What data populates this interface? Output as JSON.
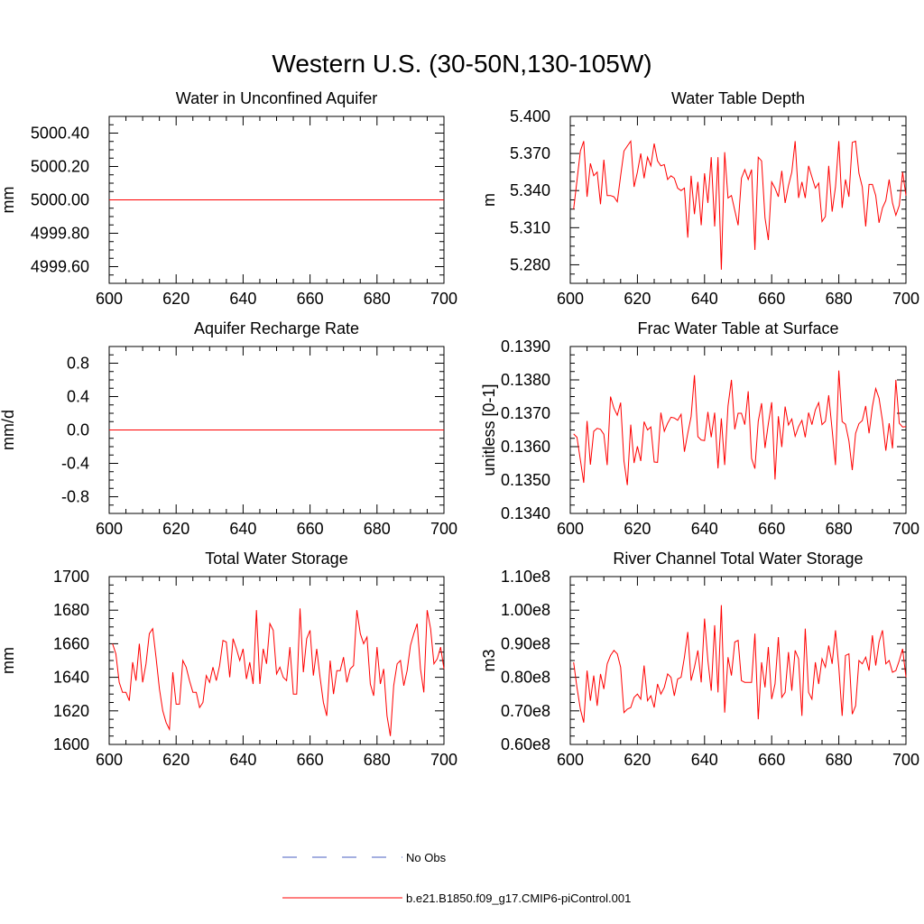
{
  "figure": {
    "title": "Western U.S. (30-50N,130-105W)",
    "legend": {
      "obs_label": "No Obs",
      "model_label": "b.e21.B1850.f09_g17.CMIP6-piControl.001",
      "obs_color": "#4a5fc1",
      "model_color": "#ff0000"
    }
  },
  "chart_data": [
    {
      "type": "line",
      "title": "Water in Unconfined Aquifer",
      "xlabel": "",
      "ylabel": "mm",
      "xlim": [
        600,
        700
      ],
      "ylim": [
        4999.5,
        5000.5
      ],
      "xticks": [
        600,
        620,
        640,
        660,
        680,
        700
      ],
      "yticks": [
        4999.6,
        4999.8,
        5000.0,
        5000.2,
        5000.4
      ],
      "ytick_labels": [
        "4999.60",
        "4999.80",
        "5000.00",
        "5000.20",
        "5000.40"
      ],
      "x": [
        600,
        700
      ],
      "series": [
        {
          "values": [
            5000.0,
            5000.0
          ]
        }
      ]
    },
    {
      "type": "line",
      "title": "Water Table Depth",
      "xlabel": "",
      "ylabel": "m",
      "xlim": [
        600,
        700
      ],
      "ylim": [
        5.265,
        5.4
      ],
      "xticks": [
        600,
        620,
        640,
        660,
        680,
        700
      ],
      "yticks": [
        5.28,
        5.31,
        5.34,
        5.37,
        5.4
      ],
      "ytick_labels": [
        "5.280",
        "5.310",
        "5.340",
        "5.370",
        "5.400"
      ],
      "x": [
        601,
        602,
        603,
        604,
        605,
        606,
        607,
        608,
        609,
        610,
        611,
        612,
        613,
        614,
        615,
        616,
        617,
        618,
        619,
        620,
        621,
        622,
        623,
        624,
        625,
        626,
        627,
        628,
        629,
        630,
        631,
        632,
        633,
        634,
        635,
        636,
        637,
        638,
        639,
        640,
        641,
        642,
        643,
        644,
        645,
        646,
        647,
        648,
        649,
        650,
        651,
        652,
        653,
        654,
        655,
        656,
        657,
        658,
        659,
        660,
        661,
        662,
        663,
        664,
        665,
        666,
        667,
        668,
        669,
        670,
        671,
        672,
        673,
        674,
        675,
        676,
        677,
        678,
        679,
        680,
        681,
        682,
        683,
        684,
        685,
        686,
        687,
        688,
        689,
        690,
        691,
        692,
        693,
        694,
        695,
        696,
        697,
        698,
        699,
        700
      ],
      "series": [
        {
          "values": [
            5.325,
            5.348,
            5.372,
            5.38,
            5.335,
            5.362,
            5.352,
            5.355,
            5.329,
            5.365,
            5.336,
            5.336,
            5.335,
            5.331,
            5.352,
            5.372,
            5.376,
            5.38,
            5.343,
            5.355,
            5.37,
            5.35,
            5.367,
            5.36,
            5.378,
            5.364,
            5.36,
            5.361,
            5.349,
            5.352,
            5.35,
            5.342,
            5.34,
            5.342,
            5.302,
            5.352,
            5.321,
            5.347,
            5.312,
            5.354,
            5.33,
            5.367,
            5.311,
            5.367,
            5.276,
            5.371,
            5.334,
            5.336,
            5.324,
            5.312,
            5.35,
            5.357,
            5.349,
            5.357,
            5.292,
            5.367,
            5.364,
            5.318,
            5.3,
            5.347,
            5.342,
            5.335,
            5.356,
            5.33,
            5.344,
            5.355,
            5.38,
            5.334,
            5.347,
            5.334,
            5.36,
            5.351,
            5.342,
            5.346,
            5.315,
            5.319,
            5.36,
            5.323,
            5.343,
            5.38,
            5.326,
            5.349,
            5.335,
            5.379,
            5.38,
            5.354,
            5.343,
            5.311,
            5.345,
            5.345,
            5.336,
            5.314,
            5.326,
            5.332,
            5.349,
            5.33,
            5.32,
            5.328,
            5.355,
            5.336
          ]
        }
      ]
    },
    {
      "type": "line",
      "title": "Aquifer Recharge Rate",
      "xlabel": "",
      "ylabel": "mm/d",
      "xlim": [
        600,
        700
      ],
      "ylim": [
        -1.0,
        1.0
      ],
      "xticks": [
        600,
        620,
        640,
        660,
        680,
        700
      ],
      "yticks": [
        -0.8,
        -0.4,
        0.0,
        0.4,
        0.8
      ],
      "ytick_labels": [
        "-0.8",
        "-0.4",
        "0.0",
        "0.4",
        "0.8"
      ],
      "x": [
        600,
        700
      ],
      "series": [
        {
          "values": [
            0.0,
            0.0
          ]
        }
      ]
    },
    {
      "type": "line",
      "title": "Frac Water Table at Surface",
      "xlabel": "",
      "ylabel": "unitless [0-1]",
      "xlim": [
        600,
        700
      ],
      "ylim": [
        0.134,
        0.139
      ],
      "xticks": [
        600,
        620,
        640,
        660,
        680,
        700
      ],
      "yticks": [
        0.134,
        0.135,
        0.136,
        0.137,
        0.138,
        0.139
      ],
      "ytick_labels": [
        "0.1340",
        "0.1350",
        "0.1360",
        "0.1370",
        "0.1380",
        "0.1390"
      ],
      "x": [
        601,
        602,
        603,
        604,
        605,
        606,
        607,
        608,
        609,
        610,
        611,
        612,
        613,
        614,
        615,
        616,
        617,
        618,
        619,
        620,
        621,
        622,
        623,
        624,
        625,
        626,
        627,
        628,
        629,
        630,
        631,
        632,
        633,
        634,
        635,
        636,
        637,
        638,
        639,
        640,
        641,
        642,
        643,
        644,
        645,
        646,
        647,
        648,
        649,
        650,
        651,
        652,
        653,
        654,
        655,
        656,
        657,
        658,
        659,
        660,
        661,
        662,
        663,
        664,
        665,
        666,
        667,
        668,
        669,
        670,
        671,
        672,
        673,
        674,
        675,
        676,
        677,
        678,
        679,
        680,
        681,
        682,
        683,
        684,
        685,
        686,
        687,
        688,
        689,
        690,
        691,
        692,
        693,
        694,
        695,
        696,
        697,
        698,
        699,
        700
      ],
      "series": [
        {
          "values": [
            0.13638,
            0.13628,
            0.1356,
            0.13492,
            0.13677,
            0.13546,
            0.13646,
            0.13655,
            0.13652,
            0.13637,
            0.13545,
            0.1375,
            0.13715,
            0.13694,
            0.13732,
            0.13557,
            0.13485,
            0.13666,
            0.13551,
            0.13601,
            0.13557,
            0.13675,
            0.1365,
            0.13659,
            0.13554,
            0.13553,
            0.13702,
            0.13646,
            0.1367,
            0.13688,
            0.13686,
            0.13679,
            0.13697,
            0.13585,
            0.1364,
            0.1369,
            0.13814,
            0.1363,
            0.1362,
            0.13618,
            0.13704,
            0.13628,
            0.13702,
            0.13535,
            0.13685,
            0.13545,
            0.13722,
            0.138,
            0.13652,
            0.137,
            0.137,
            0.13666,
            0.13766,
            0.13565,
            0.13534,
            0.13676,
            0.1373,
            0.13596,
            0.13669,
            0.13733,
            0.13502,
            0.13691,
            0.13599,
            0.1372,
            0.13665,
            0.13683,
            0.13631,
            0.1366,
            0.13679,
            0.13628,
            0.13702,
            0.13666,
            0.1371,
            0.13732,
            0.13666,
            0.13676,
            0.13754,
            0.1365,
            0.13545,
            0.13828,
            0.13675,
            0.13667,
            0.13617,
            0.1353,
            0.1364,
            0.13669,
            0.13678,
            0.13722,
            0.1364,
            0.1372,
            0.13774,
            0.13745,
            0.13677,
            0.13588,
            0.1367,
            0.13595,
            0.138,
            0.1367,
            0.13659,
            0.1366
          ]
        }
      ]
    },
    {
      "type": "line",
      "title": "Total Water Storage",
      "xlabel": "",
      "ylabel": "mm",
      "xlim": [
        600,
        700
      ],
      "ylim": [
        1600,
        1700
      ],
      "xticks": [
        600,
        620,
        640,
        660,
        680,
        700
      ],
      "yticks": [
        1600,
        1620,
        1640,
        1660,
        1680,
        1700
      ],
      "ytick_labels": [
        "1600",
        "1620",
        "1640",
        "1660",
        "1680",
        "1700"
      ],
      "x": [
        601,
        602,
        603,
        604,
        605,
        606,
        607,
        608,
        609,
        610,
        611,
        612,
        613,
        614,
        615,
        616,
        617,
        618,
        619,
        620,
        621,
        622,
        623,
        624,
        625,
        626,
        627,
        628,
        629,
        630,
        631,
        632,
        633,
        634,
        635,
        636,
        637,
        638,
        639,
        640,
        641,
        642,
        643,
        644,
        645,
        646,
        647,
        648,
        649,
        650,
        651,
        652,
        653,
        654,
        655,
        656,
        657,
        658,
        659,
        660,
        661,
        662,
        663,
        664,
        665,
        666,
        667,
        668,
        669,
        670,
        671,
        672,
        673,
        674,
        675,
        676,
        677,
        678,
        679,
        680,
        681,
        682,
        683,
        684,
        685,
        686,
        687,
        688,
        689,
        690,
        691,
        692,
        693,
        694,
        695,
        696,
        697,
        698,
        699,
        700
      ],
      "series": [
        {
          "values": [
            1660,
            1654,
            1637,
            1631,
            1631,
            1626,
            1649,
            1638,
            1660,
            1637,
            1648,
            1666,
            1669,
            1652,
            1633,
            1620,
            1613,
            1609,
            1643,
            1624,
            1624,
            1650,
            1646,
            1638,
            1631,
            1631,
            1622,
            1625,
            1641,
            1637,
            1646,
            1638,
            1647,
            1662,
            1661,
            1640,
            1663,
            1657,
            1650,
            1657,
            1639,
            1649,
            1636,
            1680,
            1636,
            1657,
            1648,
            1672,
            1668,
            1642,
            1646,
            1640,
            1638,
            1658,
            1630,
            1630,
            1681,
            1643,
            1663,
            1668,
            1641,
            1657,
            1640,
            1625,
            1617,
            1650,
            1630,
            1644,
            1644,
            1652,
            1637,
            1645,
            1647,
            1680,
            1666,
            1660,
            1664,
            1636,
            1629,
            1658,
            1636,
            1645,
            1617,
            1605,
            1635,
            1648,
            1650,
            1635,
            1644,
            1659,
            1666,
            1672,
            1645,
            1631,
            1680,
            1669,
            1648,
            1651,
            1658,
            1645
          ]
        }
      ]
    },
    {
      "type": "line",
      "title": "River Channel Total Water Storage",
      "xlabel": "",
      "ylabel": "m3",
      "xlim": [
        600,
        700
      ],
      "ylim": [
        60000000,
        110000000
      ],
      "xticks": [
        600,
        620,
        640,
        660,
        680,
        700
      ],
      "yticks": [
        60000000,
        70000000,
        80000000,
        90000000,
        100000000,
        110000000
      ],
      "ytick_labels": [
        "0.60e8",
        "0.70e8",
        "0.80e8",
        "0.90e8",
        "1.00e8",
        "1.10e8"
      ],
      "x": [
        601,
        602,
        603,
        604,
        605,
        606,
        607,
        608,
        609,
        610,
        611,
        612,
        613,
        614,
        615,
        616,
        617,
        618,
        619,
        620,
        621,
        622,
        623,
        624,
        625,
        626,
        627,
        628,
        629,
        630,
        631,
        632,
        633,
        634,
        635,
        636,
        637,
        638,
        639,
        640,
        641,
        642,
        643,
        644,
        645,
        646,
        647,
        648,
        649,
        650,
        651,
        652,
        653,
        654,
        655,
        656,
        657,
        658,
        659,
        660,
        661,
        662,
        663,
        664,
        665,
        666,
        667,
        668,
        669,
        670,
        671,
        672,
        673,
        674,
        675,
        676,
        677,
        678,
        679,
        680,
        681,
        682,
        683,
        684,
        685,
        686,
        687,
        688,
        689,
        690,
        691,
        692,
        693,
        694,
        695,
        696,
        697,
        698,
        699,
        700
      ],
      "series": [
        {
          "values": [
            84500000,
            77000000,
            70500000,
            66500000,
            82000000,
            73000000,
            80500000,
            71500000,
            81000000,
            76500000,
            84000000,
            86500000,
            88000000,
            87000000,
            83000000,
            69500000,
            70500000,
            71000000,
            74000000,
            75000000,
            73500000,
            83500000,
            73000000,
            74500000,
            71000000,
            78000000,
            75000000,
            77000000,
            81000000,
            80000000,
            74500000,
            79500000,
            80000000,
            86000000,
            93500000,
            79000000,
            83000000,
            88000000,
            78500000,
            97500000,
            85000000,
            76000000,
            95500000,
            75500000,
            101500000,
            69500000,
            86000000,
            80500000,
            90500000,
            91000000,
            79000000,
            78500000,
            78500000,
            78500000,
            93000000,
            67500000,
            84500000,
            77000000,
            89000000,
            73500000,
            78000000,
            92000000,
            74000000,
            75500000,
            87500000,
            76000000,
            88000000,
            85500000,
            68500000,
            94500000,
            75500000,
            73500000,
            84500000,
            78000000,
            85500000,
            83000000,
            89500000,
            84000000,
            94000000,
            83000000,
            68500000,
            86500000,
            87000000,
            69000000,
            71500000,
            85000000,
            84000000,
            86000000,
            82000000,
            92500000,
            83500000,
            90500000,
            94000000,
            84000000,
            85000000,
            81500000,
            82000000,
            85000000,
            88500000,
            80000000
          ]
        }
      ]
    }
  ]
}
